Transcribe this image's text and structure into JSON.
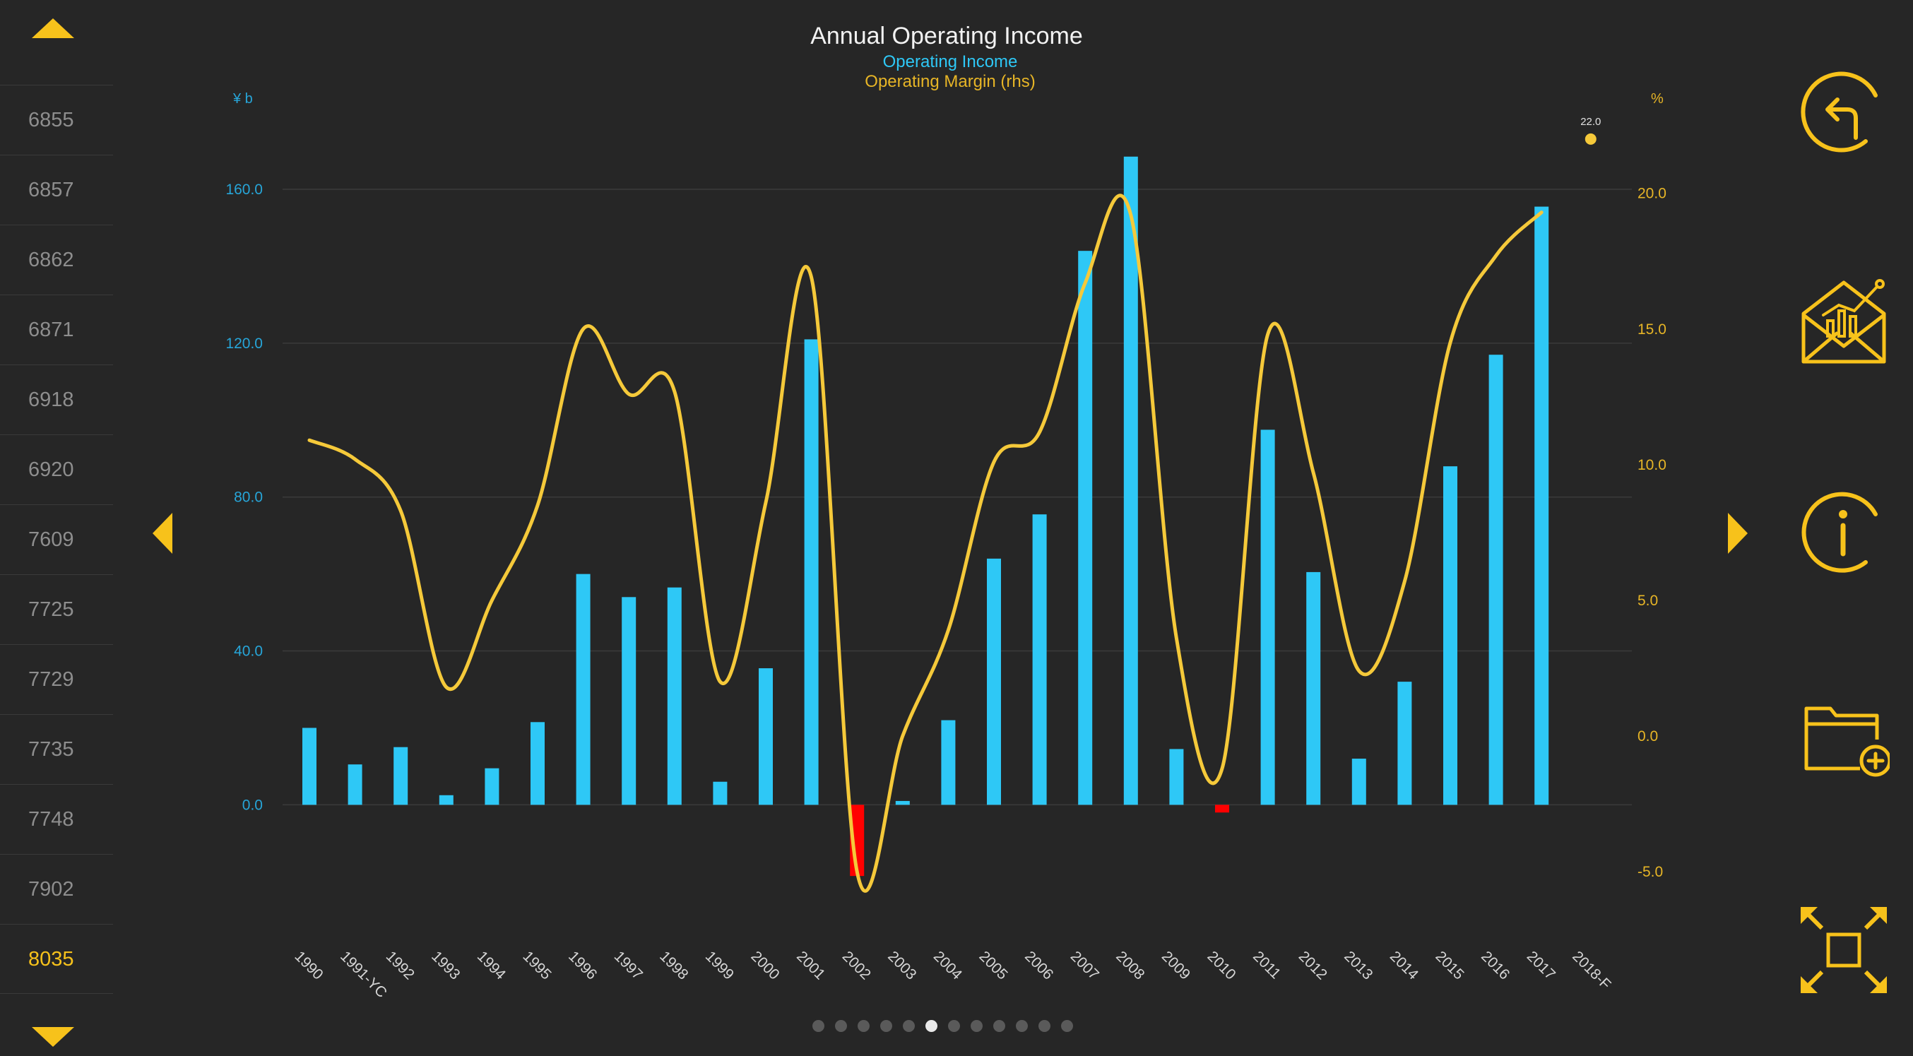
{
  "sidebar": {
    "scroll_up_icon": "triangle-up-icon",
    "scroll_down_icon": "triangle-down-icon",
    "tickers": [
      "6855",
      "6857",
      "6862",
      "6871",
      "6918",
      "6920",
      "7609",
      "7725",
      "7729",
      "7735",
      "7748",
      "7902",
      "8035"
    ],
    "selected_ticker": "8035"
  },
  "navigation": {
    "prev_icon": "triangle-left-icon",
    "next_icon": "triangle-right-icon",
    "page_count": 12,
    "current_page": 6
  },
  "toolbar": {
    "buttons": [
      "back-arrow-icon",
      "email-chart-icon",
      "info-icon",
      "add-to-folder-icon",
      "fullscreen-icon"
    ]
  },
  "colors": {
    "accent": "#f7c21b",
    "bar_positive": "#2ec8f6",
    "bar_negative": "#ff0000",
    "line": "#f5c93a",
    "left_axis": "#27a5d8",
    "right_axis": "#e7b526",
    "background": "#262626"
  },
  "chart_data": {
    "type": "bar",
    "title": "Annual Operating Income",
    "legend": [
      "Operating Income",
      "Operating Margin (rhs)"
    ],
    "ylabel_left": "¥ b",
    "ylabel_right": "%",
    "ylim_left": [
      -35,
      178
    ],
    "ylim_right": [
      -7.5,
      22.7
    ],
    "yticks_left": [
      "0.0",
      "40.0",
      "80.0",
      "120.0",
      "160.0"
    ],
    "yticks_right": [
      "-5.0",
      "0.0",
      "5.0",
      "10.0",
      "15.0",
      "20.0"
    ],
    "categories": [
      "1990",
      "1991-YC",
      "1992",
      "1993",
      "1994",
      "1995",
      "1996",
      "1997",
      "1998",
      "1999",
      "2000",
      "2001",
      "2002",
      "2003",
      "2004",
      "2005",
      "2006",
      "2007",
      "2008",
      "2009",
      "2010",
      "2011",
      "2012",
      "2013",
      "2014",
      "2015",
      "2016",
      "2017",
      "2018-F"
    ],
    "series": [
      {
        "name": "Operating Income",
        "axis": "left",
        "values": [
          20,
          10.5,
          15,
          2.5,
          9.5,
          21.5,
          60,
          54,
          56.5,
          6,
          35.5,
          121,
          -18.5,
          1,
          22,
          64,
          75.5,
          144,
          168.5,
          14.5,
          -2,
          97.5,
          60.5,
          12,
          32,
          88,
          117,
          155.5,
          null
        ]
      },
      {
        "name": "Operating Margin (rhs)",
        "axis": "right",
        "values": [
          10.9,
          10.2,
          8.3,
          1.8,
          5,
          8.5,
          15,
          12.6,
          12.7,
          2,
          8.6,
          16.9,
          -5,
          0,
          3.9,
          10.1,
          11.2,
          16.7,
          19.2,
          3.6,
          -1.2,
          14.8,
          9.7,
          2.4,
          5.7,
          14.5,
          17.7,
          19.3,
          null
        ]
      }
    ],
    "forecast_point": {
      "category": "2018-F",
      "value": 22.0,
      "label": "22.0"
    },
    "grid": true
  }
}
